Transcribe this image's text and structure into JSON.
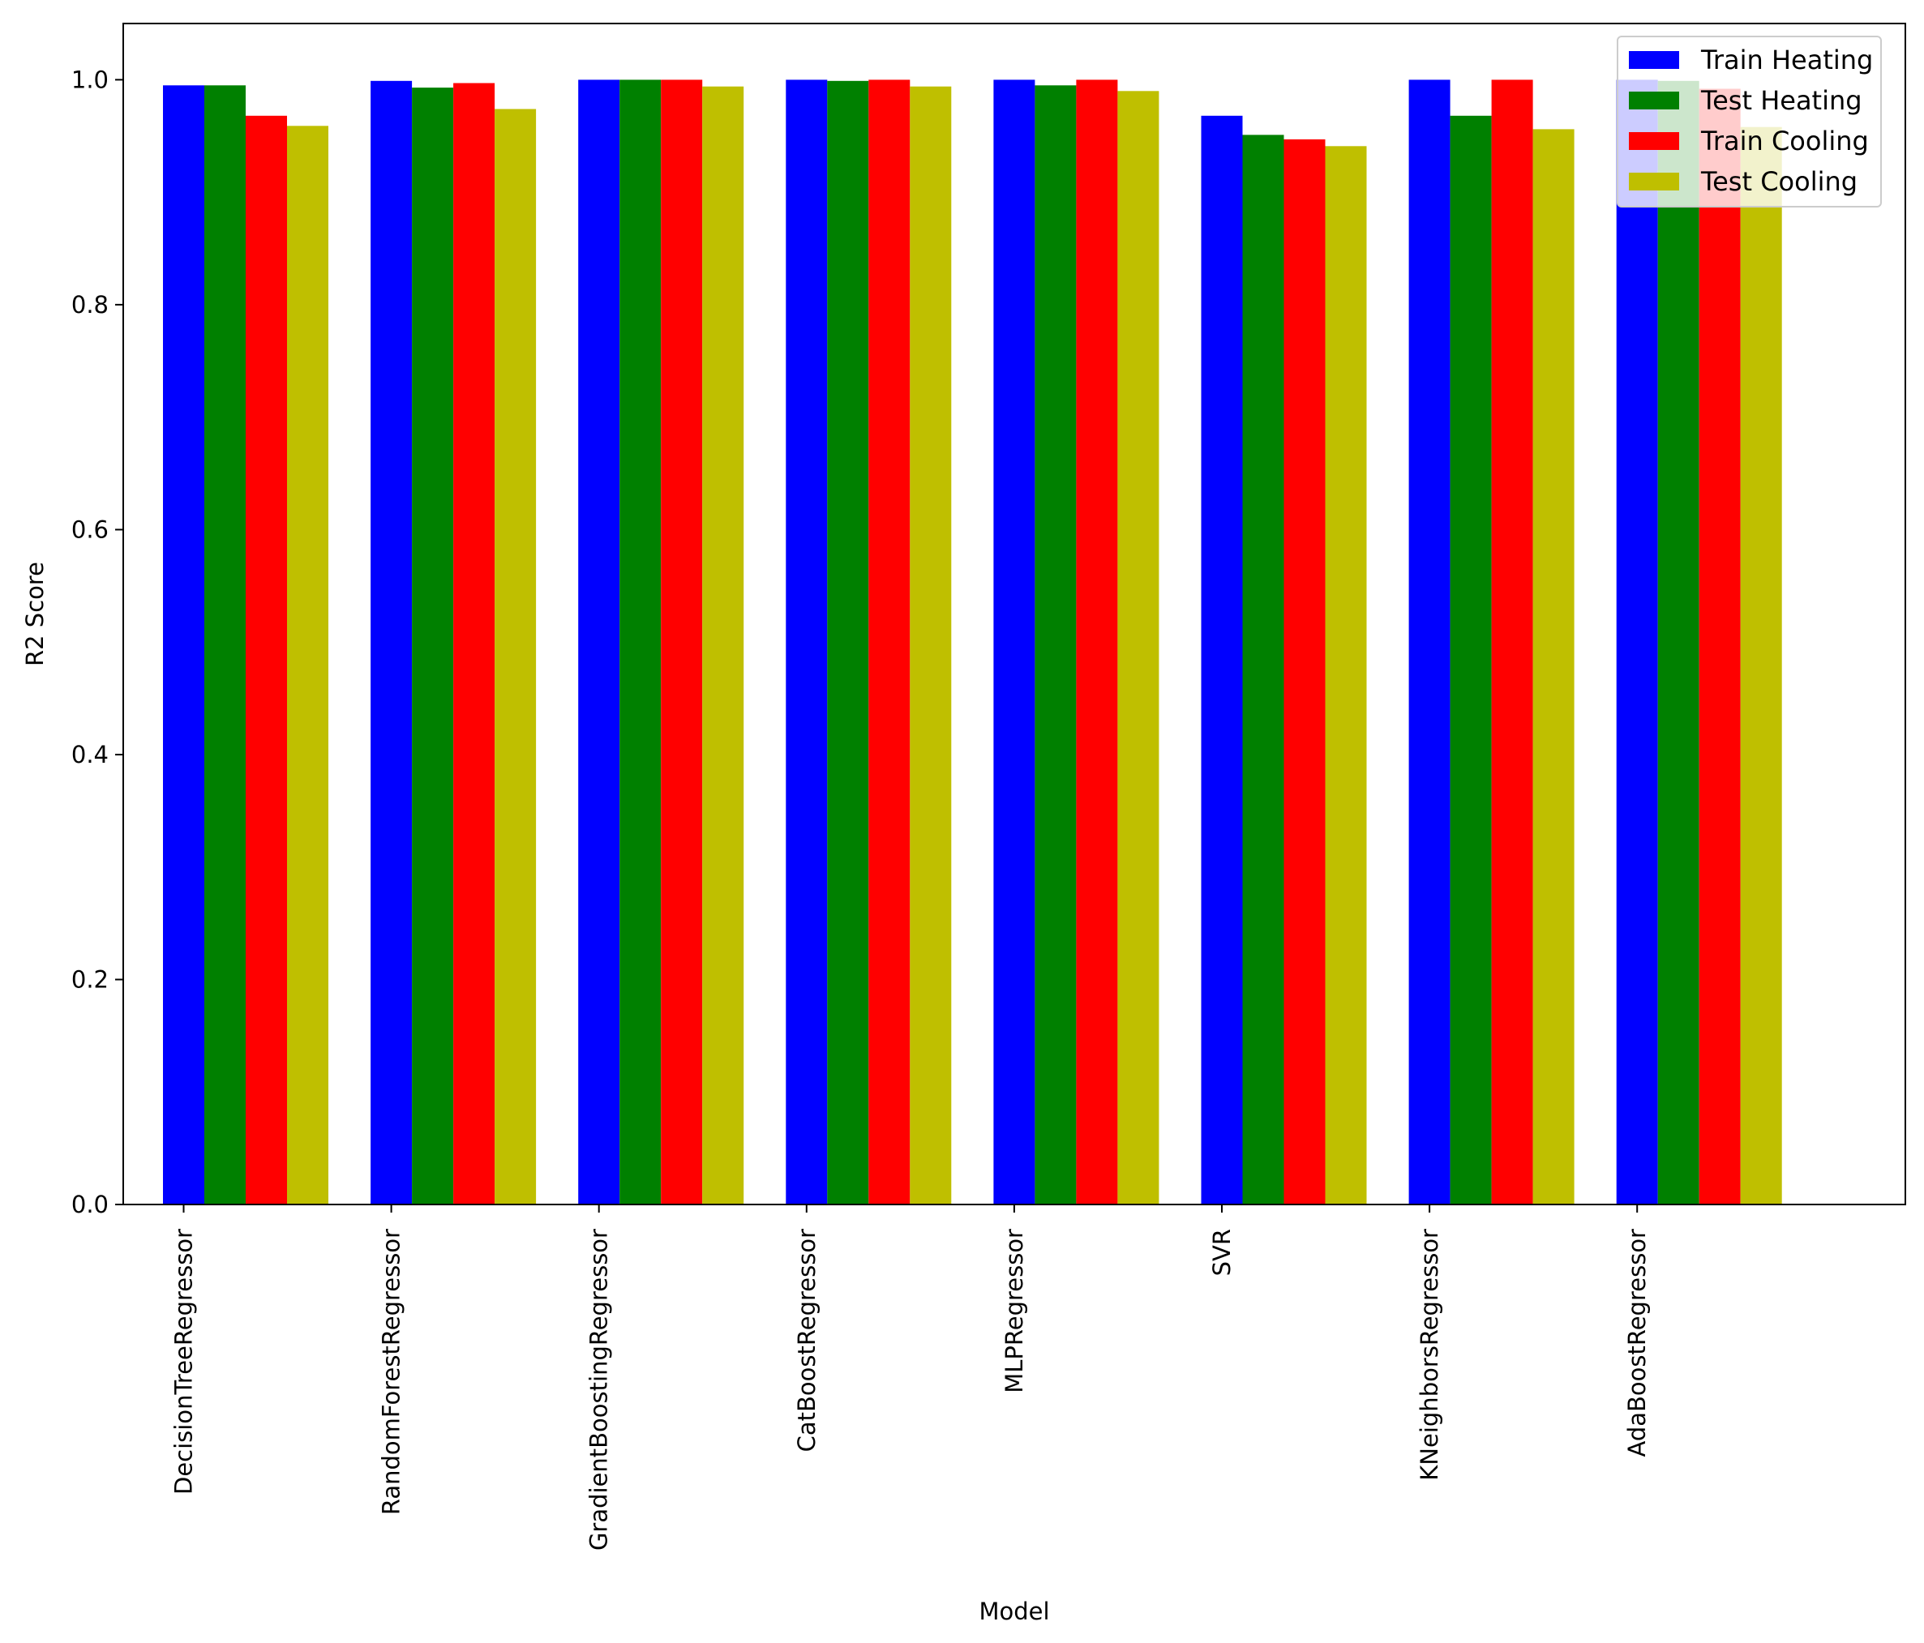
{
  "chart_data": {
    "type": "bar",
    "title": "",
    "xlabel": "Model",
    "ylabel": "R2 Score",
    "ylim": [
      0.0,
      1.05
    ],
    "yticks": [
      0.0,
      0.2,
      0.4,
      0.6,
      0.8,
      1.0
    ],
    "ytick_labels": [
      "0.0",
      "0.2",
      "0.4",
      "0.6",
      "0.8",
      "1.0"
    ],
    "grid": false,
    "legend_position": "top-right",
    "categories": [
      "DecisionTreeRegressor",
      "RandomForestRegressor",
      "GradientBoostingRegressor",
      "CatBoostRegressor",
      "MLPRegressor",
      "SVR",
      "KNeighborsRegressor",
      "AdaBoostRegressor"
    ],
    "series": [
      {
        "name": "Train Heating",
        "color": "#0000ff",
        "values": [
          0.995,
          0.999,
          1.0,
          1.0,
          1.0,
          0.968,
          1.0,
          1.0
        ]
      },
      {
        "name": "Test Heating",
        "color": "#008000",
        "values": [
          0.995,
          0.993,
          1.0,
          0.999,
          0.995,
          0.951,
          0.968,
          0.999
        ]
      },
      {
        "name": "Train Cooling",
        "color": "#ff0000",
        "values": [
          0.968,
          0.997,
          1.0,
          1.0,
          1.0,
          0.947,
          1.0,
          0.992
        ]
      },
      {
        "name": "Test Cooling",
        "color": "#bfbf00",
        "values": [
          0.959,
          0.974,
          0.994,
          0.994,
          0.99,
          0.941,
          0.956,
          0.958
        ]
      }
    ]
  }
}
